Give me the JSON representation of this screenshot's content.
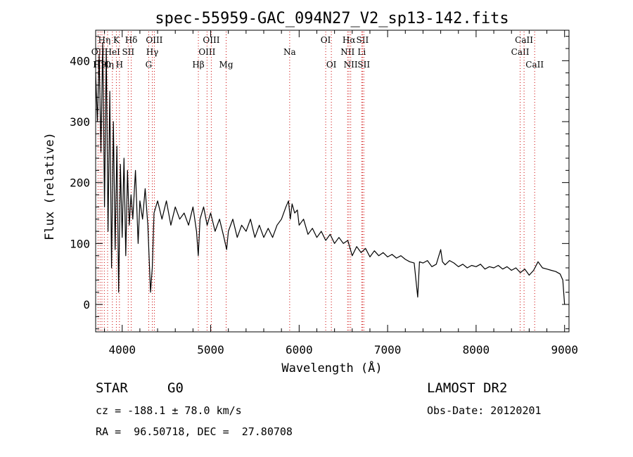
{
  "chart_data": {
    "type": "line",
    "title": "spec-55959-GAC_094N27_V2_sp13-142.fits",
    "xlabel": "Wavelength (Å)",
    "ylabel": "Flux (relative)",
    "xlim": [
      3700,
      9050
    ],
    "ylim": [
      -45,
      450
    ],
    "xticks": [
      4000,
      5000,
      6000,
      7000,
      8000,
      9000
    ],
    "yticks": [
      0,
      100,
      200,
      300,
      400
    ],
    "line_color": "#000000",
    "marker_color": "#cc0000",
    "series": [
      {
        "values": [
          [
            3700,
            380
          ],
          [
            3720,
            300
          ],
          [
            3740,
            410
          ],
          [
            3760,
            250
          ],
          [
            3780,
            430
          ],
          [
            3800,
            160
          ],
          [
            3820,
            420
          ],
          [
            3840,
            120
          ],
          [
            3860,
            350
          ],
          [
            3880,
            60
          ],
          [
            3900,
            300
          ],
          [
            3920,
            90
          ],
          [
            3940,
            260
          ],
          [
            3960,
            20
          ],
          [
            3980,
            230
          ],
          [
            4000,
            110
          ],
          [
            4020,
            240
          ],
          [
            4040,
            80
          ],
          [
            4060,
            220
          ],
          [
            4080,
            130
          ],
          [
            4100,
            180
          ],
          [
            4120,
            140
          ],
          [
            4150,
            220
          ],
          [
            4180,
            100
          ],
          [
            4200,
            170
          ],
          [
            4230,
            140
          ],
          [
            4260,
            190
          ],
          [
            4290,
            130
          ],
          [
            4320,
            20
          ],
          [
            4340,
            60
          ],
          [
            4360,
            150
          ],
          [
            4400,
            170
          ],
          [
            4450,
            140
          ],
          [
            4500,
            170
          ],
          [
            4550,
            130
          ],
          [
            4600,
            160
          ],
          [
            4650,
            140
          ],
          [
            4700,
            150
          ],
          [
            4750,
            130
          ],
          [
            4800,
            160
          ],
          [
            4840,
            120
          ],
          [
            4860,
            80
          ],
          [
            4880,
            140
          ],
          [
            4920,
            160
          ],
          [
            4960,
            130
          ],
          [
            5000,
            150
          ],
          [
            5050,
            120
          ],
          [
            5100,
            140
          ],
          [
            5150,
            110
          ],
          [
            5180,
            90
          ],
          [
            5200,
            120
          ],
          [
            5250,
            140
          ],
          [
            5300,
            110
          ],
          [
            5350,
            130
          ],
          [
            5400,
            120
          ],
          [
            5450,
            140
          ],
          [
            5500,
            110
          ],
          [
            5550,
            130
          ],
          [
            5600,
            110
          ],
          [
            5650,
            125
          ],
          [
            5700,
            110
          ],
          [
            5750,
            130
          ],
          [
            5800,
            140
          ],
          [
            5850,
            160
          ],
          [
            5880,
            170
          ],
          [
            5900,
            140
          ],
          [
            5920,
            165
          ],
          [
            5950,
            150
          ],
          [
            5980,
            155
          ],
          [
            6000,
            130
          ],
          [
            6050,
            140
          ],
          [
            6100,
            115
          ],
          [
            6150,
            125
          ],
          [
            6200,
            110
          ],
          [
            6250,
            120
          ],
          [
            6300,
            105
          ],
          [
            6350,
            115
          ],
          [
            6400,
            100
          ],
          [
            6450,
            110
          ],
          [
            6500,
            100
          ],
          [
            6550,
            105
          ],
          [
            6600,
            80
          ],
          [
            6650,
            95
          ],
          [
            6700,
            85
          ],
          [
            6750,
            92
          ],
          [
            6800,
            78
          ],
          [
            6850,
            88
          ],
          [
            6900,
            80
          ],
          [
            6950,
            85
          ],
          [
            7000,
            78
          ],
          [
            7050,
            82
          ],
          [
            7100,
            76
          ],
          [
            7150,
            80
          ],
          [
            7200,
            74
          ],
          [
            7250,
            70
          ],
          [
            7300,
            68
          ],
          [
            7340,
            12
          ],
          [
            7360,
            70
          ],
          [
            7400,
            68
          ],
          [
            7450,
            72
          ],
          [
            7500,
            62
          ],
          [
            7550,
            66
          ],
          [
            7600,
            90
          ],
          [
            7620,
            70
          ],
          [
            7650,
            65
          ],
          [
            7700,
            72
          ],
          [
            7750,
            68
          ],
          [
            7800,
            62
          ],
          [
            7850,
            66
          ],
          [
            7900,
            60
          ],
          [
            7950,
            64
          ],
          [
            8000,
            62
          ],
          [
            8050,
            66
          ],
          [
            8100,
            58
          ],
          [
            8150,
            62
          ],
          [
            8200,
            60
          ],
          [
            8250,
            64
          ],
          [
            8300,
            58
          ],
          [
            8350,
            62
          ],
          [
            8400,
            56
          ],
          [
            8450,
            60
          ],
          [
            8500,
            52
          ],
          [
            8550,
            58
          ],
          [
            8600,
            48
          ],
          [
            8650,
            56
          ],
          [
            8700,
            70
          ],
          [
            8750,
            60
          ],
          [
            8800,
            58
          ],
          [
            8850,
            56
          ],
          [
            8900,
            54
          ],
          [
            8950,
            50
          ],
          [
            8980,
            40
          ],
          [
            9000,
            0
          ]
        ]
      }
    ],
    "line_markers": [
      {
        "wl": 3727,
        "label": "OII",
        "row": 2
      },
      {
        "wl": 3750,
        "label": "H9",
        "row": 3
      },
      {
        "wl": 3771,
        "label": "H10",
        "row": 3
      },
      {
        "wl": 3798,
        "label": "Hη",
        "row": 1
      },
      {
        "wl": 3835,
        "label": "Hη",
        "row": 3
      },
      {
        "wl": 3889,
        "label": "HeI",
        "row": 2
      },
      {
        "wl": 3934,
        "label": "K",
        "row": 1
      },
      {
        "wl": 3969,
        "label": "H",
        "row": 3
      },
      {
        "wl": 4068,
        "label": "SII",
        "row": 2
      },
      {
        "wl": 4102,
        "label": "Hδ",
        "row": 1
      },
      {
        "wl": 4300,
        "label": "G",
        "row": 3
      },
      {
        "wl": 4340,
        "label": "Hγ",
        "row": 2
      },
      {
        "wl": 4363,
        "label": "OIII",
        "row": 1
      },
      {
        "wl": 4861,
        "label": "Hβ",
        "row": 3
      },
      {
        "wl": 4959,
        "label": "OIII",
        "row": 2
      },
      {
        "wl": 5007,
        "label": "OIII",
        "row": 1
      },
      {
        "wl": 5175,
        "label": "Mg",
        "row": 3
      },
      {
        "wl": 5893,
        "label": "Na",
        "row": 2
      },
      {
        "wl": 6300,
        "label": "OI",
        "row": 1
      },
      {
        "wl": 6364,
        "label": "OI",
        "row": 3
      },
      {
        "wl": 6548,
        "label": "NII",
        "row": 2
      },
      {
        "wl": 6563,
        "label": "Hα",
        "row": 1
      },
      {
        "wl": 6583,
        "label": "NII",
        "row": 3
      },
      {
        "wl": 6707,
        "label": "Li",
        "row": 2
      },
      {
        "wl": 6716,
        "label": "SII",
        "row": 1
      },
      {
        "wl": 6731,
        "label": "SII",
        "row": 3
      },
      {
        "wl": 8498,
        "label": "CaII",
        "row": 2
      },
      {
        "wl": 8542,
        "label": "CaII",
        "row": 1
      },
      {
        "wl": 8662,
        "label": "CaII",
        "row": 3
      }
    ]
  },
  "info": {
    "class": "STAR",
    "subclass": "G0",
    "survey": "LAMOST DR2",
    "cz": "cz = -188.1 ± 78.0 km/s",
    "obs_date": "Obs-Date: 20120201",
    "coords": "RA =  96.50718, DEC =  27.80708"
  }
}
